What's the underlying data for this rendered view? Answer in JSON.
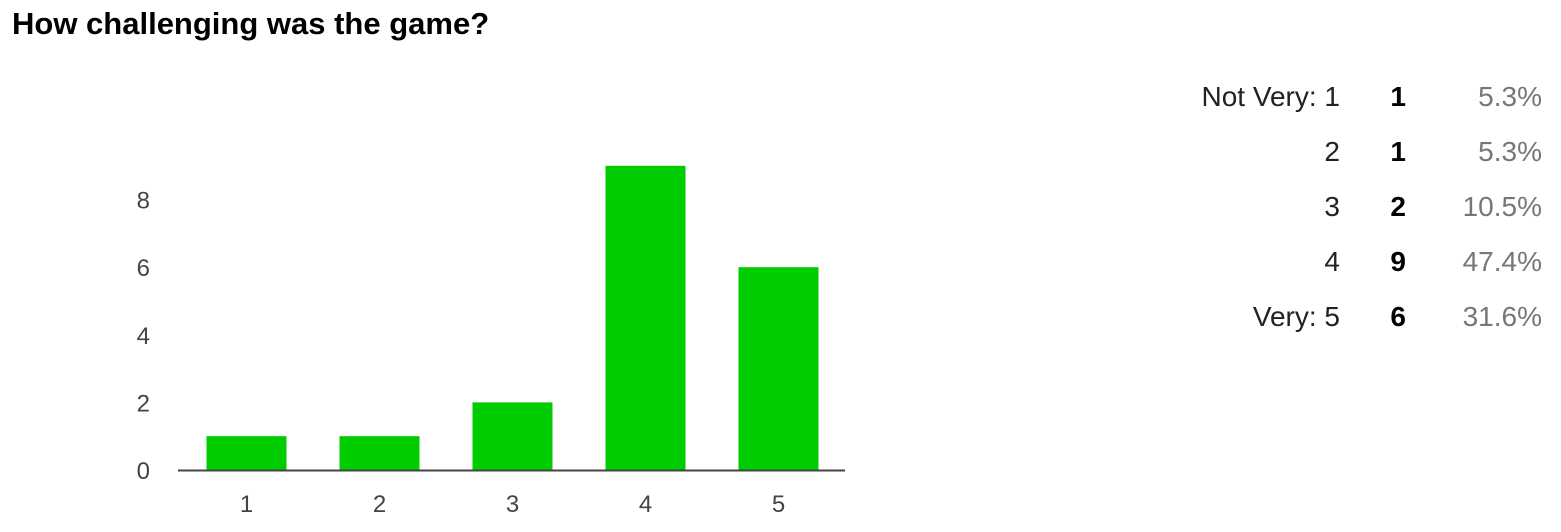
{
  "title": "How challenging was the game?",
  "colors": {
    "bar": "#00cc00",
    "axis": "#444444",
    "tick_text": "#444444",
    "percent_text": "#777777"
  },
  "chart_data": {
    "type": "bar",
    "title": "How challenging was the game?",
    "categories": [
      "1",
      "2",
      "3",
      "4",
      "5"
    ],
    "values": [
      1,
      1,
      2,
      9,
      6
    ],
    "yticks": [
      0,
      2,
      4,
      6,
      8
    ],
    "ylim": [
      0,
      9
    ],
    "xlabel": "",
    "ylabel": "",
    "grid": false,
    "legend": "none"
  },
  "summary": [
    {
      "label": "Not Very: 1",
      "count": "1",
      "percent": "5.3%"
    },
    {
      "label": "2",
      "count": "1",
      "percent": "5.3%"
    },
    {
      "label": "3",
      "count": "2",
      "percent": "10.5%"
    },
    {
      "label": "4",
      "count": "9",
      "percent": "47.4%"
    },
    {
      "label": "Very: 5",
      "count": "6",
      "percent": "31.6%"
    }
  ]
}
